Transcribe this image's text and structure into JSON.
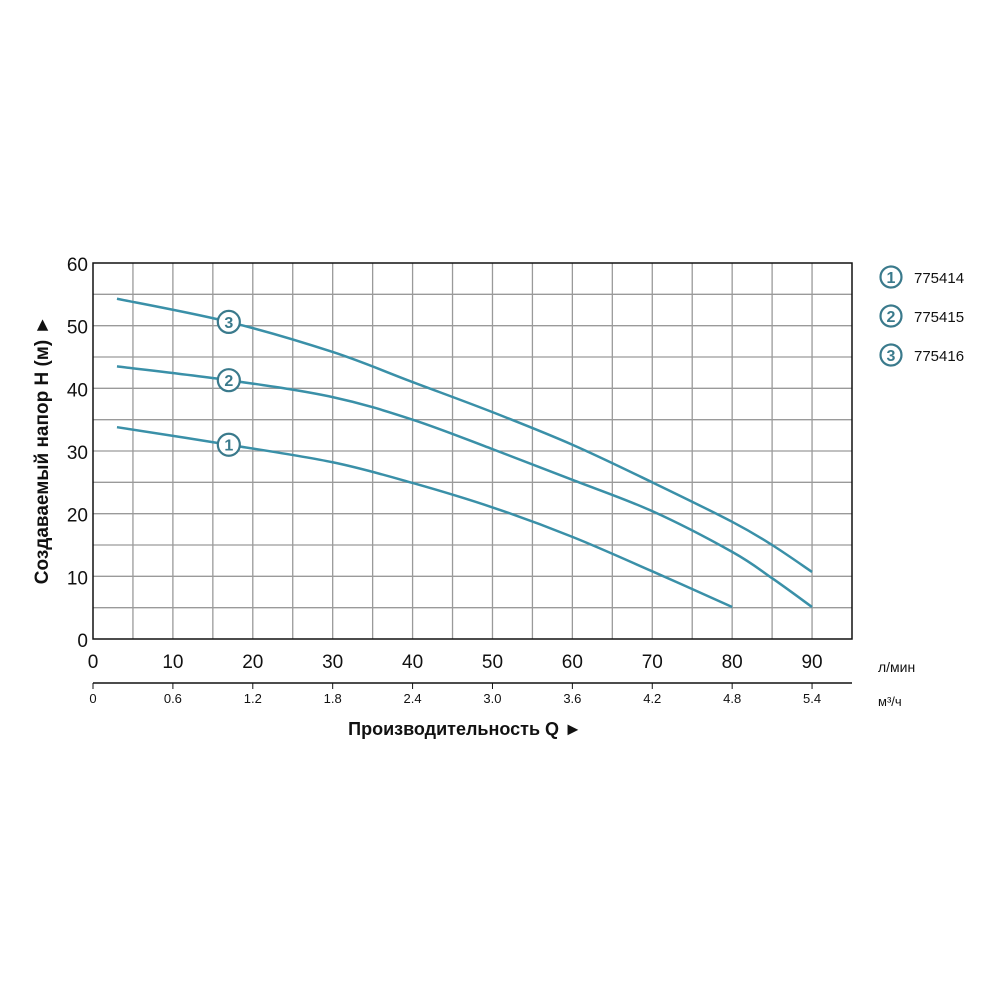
{
  "chart_data": {
    "type": "line",
    "xlabel": "Производительность Q ►",
    "ylabel": "Создаваемый напор H (м) ►",
    "x_unit": "л/мин",
    "x2_unit": "м³/ч",
    "xlim": [
      0,
      95
    ],
    "ylim": [
      0,
      60
    ],
    "x_ticks": [
      "0",
      "10",
      "20",
      "30",
      "40",
      "50",
      "60",
      "70",
      "80",
      "90"
    ],
    "x2_ticks": [
      "0",
      "0.6",
      "1.2",
      "1.8",
      "2.4",
      "3.0",
      "3.6",
      "4.2",
      "4.8",
      "5.4"
    ],
    "y_ticks": [
      "0",
      "10",
      "20",
      "30",
      "40",
      "50",
      "60"
    ],
    "grid": true,
    "grid_step_x": 5,
    "grid_step_y": 5,
    "legend_placement": "right",
    "colors": {
      "curve": "#3a90a8",
      "marker": "#3a7a8c",
      "grid": "#9a9a9a"
    },
    "series": [
      {
        "name": "775414",
        "marker": "1",
        "x": [
          3,
          17,
          30,
          40,
          50,
          60,
          70,
          80
        ],
        "y": [
          33.8,
          31,
          28.2,
          24.9,
          21,
          16.3,
          10.8,
          5.1
        ]
      },
      {
        "name": "775415",
        "marker": "2",
        "x": [
          3,
          17,
          30,
          40,
          50,
          60,
          70,
          80,
          85,
          90
        ],
        "y": [
          43.5,
          41.3,
          38.6,
          35,
          30.3,
          25.4,
          20.4,
          13.9,
          9.7,
          5.1
        ]
      },
      {
        "name": "775416",
        "marker": "3",
        "x": [
          3,
          17,
          30,
          40,
          50,
          60,
          70,
          80,
          85,
          90
        ],
        "y": [
          54.3,
          50.6,
          45.8,
          41,
          36.2,
          31,
          25,
          18.7,
          15,
          10.7
        ]
      }
    ]
  }
}
